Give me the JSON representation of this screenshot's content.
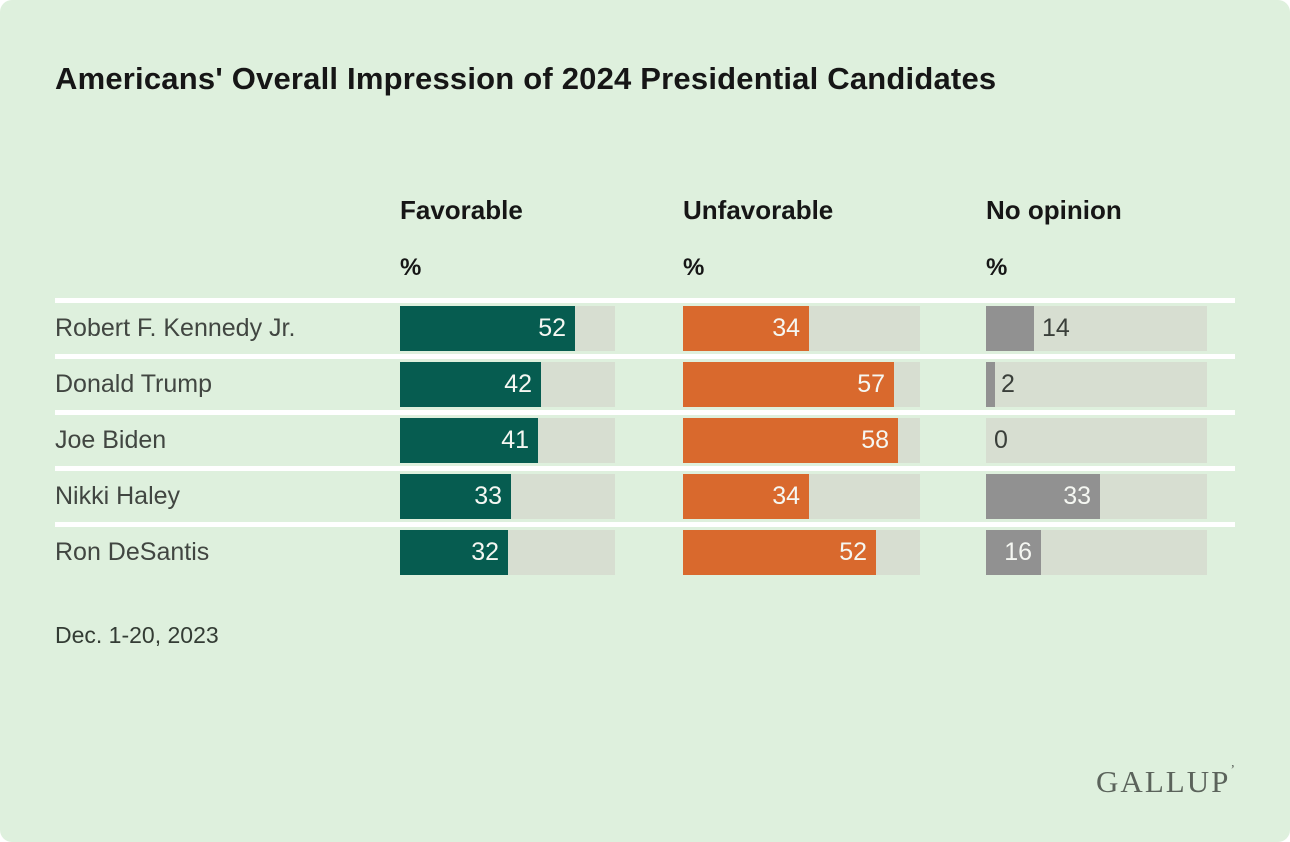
{
  "page": {
    "background_color": "#def0dd"
  },
  "title": "Americans' Overall Impression of 2024 Presidential Candidates",
  "unit_label": "%",
  "date_note": "Dec. 1-20, 2023",
  "brand": {
    "wordmark": "GALLUP",
    "trademark_tick": "’"
  },
  "chart_data": {
    "type": "bar",
    "orientation": "horizontal",
    "title": "Americans' Overall Impression of 2024 Presidential Candidates",
    "categories": [
      "Robert F. Kennedy Jr.",
      "Donald Trump",
      "Joe Biden",
      "Nikki Haley",
      "Ron DeSantis"
    ],
    "series": [
      {
        "name": "Favorable",
        "unit": "%",
        "color": "#065c50",
        "values": [
          52,
          42,
          41,
          33,
          32
        ]
      },
      {
        "name": "Unfavorable",
        "unit": "%",
        "color": "#d9692d",
        "values": [
          34,
          57,
          58,
          34,
          52
        ]
      },
      {
        "name": "No opinion",
        "unit": "%",
        "color": "#919191",
        "values": [
          14,
          2,
          0,
          33,
          16
        ]
      }
    ],
    "axis_max": 64,
    "grid": "row-separators-only",
    "legend_position": "column-headers",
    "track_color": "#d7ded1",
    "separator_color": "#ffffff",
    "inside_label_color": "#f5f7f2",
    "outside_label_color": "#3a3f3a",
    "footnote": "Dec. 1-20, 2023",
    "source": "GALLUP"
  }
}
